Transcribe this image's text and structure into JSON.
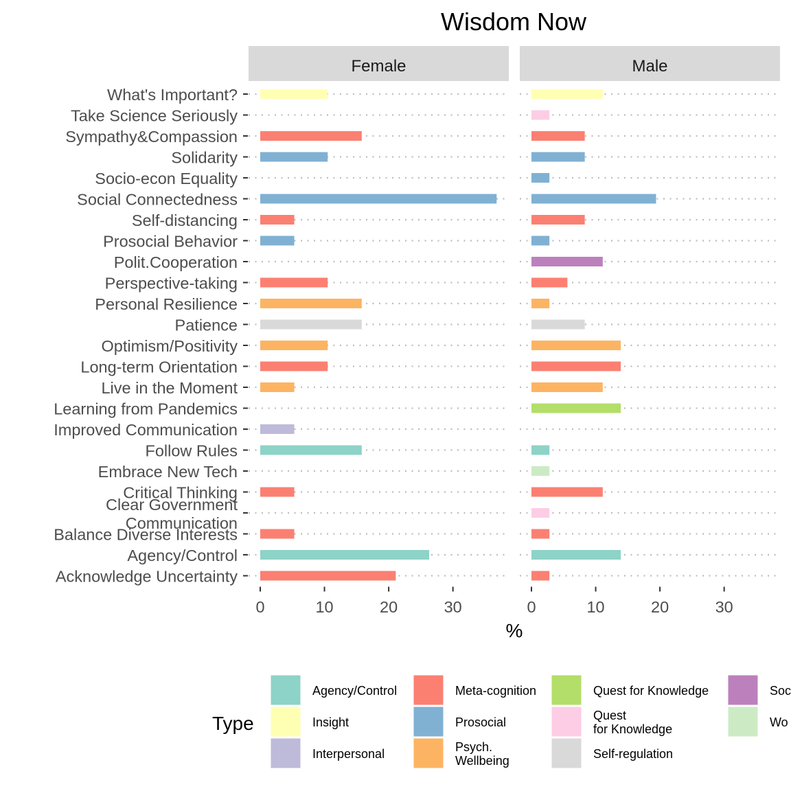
{
  "chart_data": {
    "type": "bar",
    "orientation": "horizontal",
    "title": "Wisdom Now",
    "xlabel": "%",
    "ylabel": "",
    "xlim": [
      0,
      38
    ],
    "xticks": [
      0,
      10,
      20,
      30
    ],
    "grid": "dotted-horizontal",
    "categories": [
      "What's Important?",
      "Take Science Seriously",
      "Sympathy&Compassion",
      "Solidarity",
      "Socio-econ Equality",
      "Social Connectedness",
      "Self-distancing",
      "Prosocial Behavior",
      "Polit.Cooperation",
      "Perspective-taking",
      "Personal Resilience",
      "Patience",
      "Optimism/Positivity",
      "Long-term Orientation",
      "Live in the Moment",
      "Learning from Pandemics",
      "Improved Communication",
      "Follow Rules",
      "Embrace New Tech",
      "Critical Thinking",
      "Clear Government\nCommunication",
      "Balance Diverse Interests",
      "Agency/Control",
      "Acknowledge Uncertainty"
    ],
    "category_types": [
      "Insight",
      "Quest\nfor Knowledge",
      "Meta-cognition",
      "Prosocial",
      "Prosocial",
      "Prosocial",
      "Meta-cognition",
      "Prosocial",
      "Soc",
      "Meta-cognition",
      "Psych.\nWellbeing",
      "Self-regulation",
      "Psych.\nWellbeing",
      "Meta-cognition",
      "Psych.\nWellbeing",
      "Quest for Knowledge",
      "Interpersonal",
      "Agency/Control",
      "Wo",
      "Meta-cognition",
      "Quest\nfor Knowledge",
      "Meta-cognition",
      "Agency/Control",
      "Meta-cognition"
    ],
    "panels": [
      {
        "name": "Female",
        "values": [
          10.5,
          0,
          15.8,
          10.5,
          0,
          36.8,
          5.3,
          5.3,
          0,
          10.5,
          15.8,
          15.8,
          10.5,
          10.5,
          5.3,
          0,
          5.3,
          15.8,
          0,
          5.3,
          0,
          5.3,
          26.3,
          21.1
        ]
      },
      {
        "name": "Male",
        "values": [
          11.1,
          2.8,
          8.3,
          8.3,
          2.8,
          19.4,
          8.3,
          2.8,
          11.1,
          5.6,
          2.8,
          8.3,
          13.9,
          13.9,
          11.1,
          13.9,
          0,
          2.8,
          2.8,
          11.1,
          2.8,
          2.8,
          13.9,
          2.8
        ]
      }
    ],
    "legend": {
      "title": "Type",
      "placement": "bottom",
      "items": [
        {
          "label": "Agency/Control",
          "color": "#8DD3C7"
        },
        {
          "label": "Insight",
          "color": "#FFFFB3"
        },
        {
          "label": "Interpersonal",
          "color": "#BEBADA"
        },
        {
          "label": "Meta-cognition",
          "color": "#FB8072"
        },
        {
          "label": "Prosocial",
          "color": "#80B1D3"
        },
        {
          "label": "Psych.\nWellbeing",
          "color": "#FDB462"
        },
        {
          "label": "Quest for Knowledge",
          "color": "#B3DE69"
        },
        {
          "label": "Quest\nfor Knowledge",
          "color": "#FCCDE5"
        },
        {
          "label": "Self-regulation",
          "color": "#D9D9D9"
        },
        {
          "label": "Soc",
          "color": "#BC80BD"
        },
        {
          "label": "Wo",
          "color": "#CCEBC5"
        }
      ]
    }
  }
}
